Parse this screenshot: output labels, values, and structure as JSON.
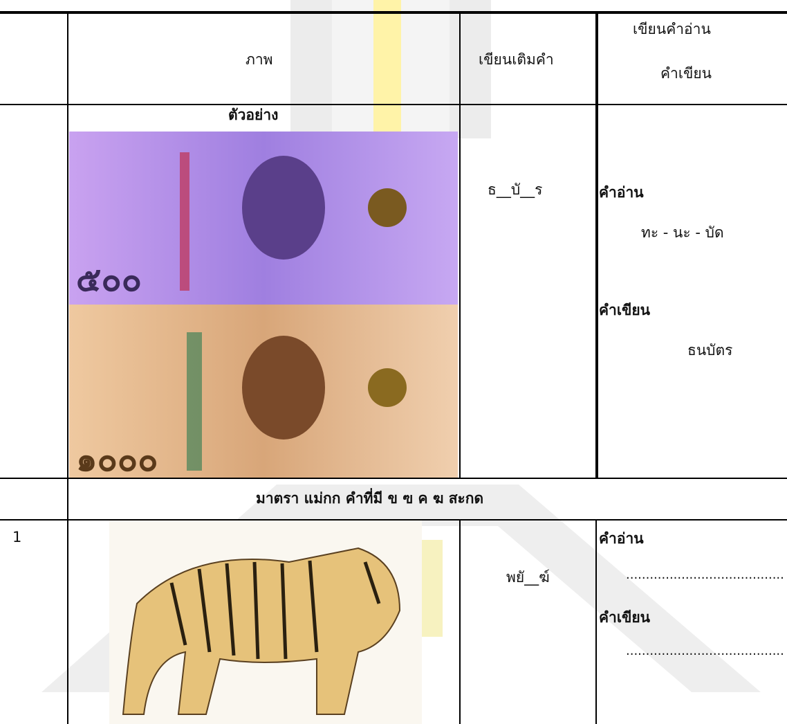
{
  "table": {
    "header": {
      "image": "ภาพ",
      "fill": "เขียนเติมคำ",
      "read_write": [
        "เขียนคำอ่าน",
        "คำเขียน"
      ]
    },
    "example": {
      "label": "ตัวอย่าง",
      "fill": "ธ__บั__ร",
      "reading_label": "คำอ่าน",
      "reading": "ทะ - นะ - บัด",
      "writing_label": "คำเขียน",
      "writing": "ธนบัตร"
    },
    "section": "มาตรา แม่กก  คำที่มี  ข  ฃ  ค  ฆ  สะกด",
    "rows": [
      {
        "number": "1",
        "fill": "พยั__ฆ์",
        "reading_label": "คำอ่าน",
        "reading_blank": "........................................",
        "writing_label": "คำเขียน",
        "writing_blank": "........................................"
      }
    ]
  }
}
